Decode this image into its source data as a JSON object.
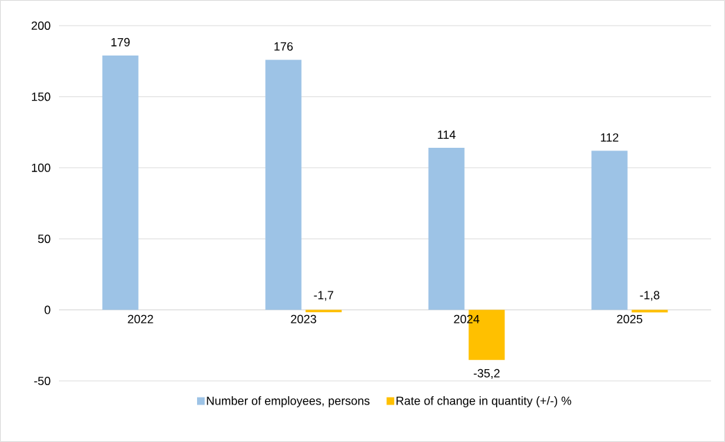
{
  "chart_data": {
    "type": "bar",
    "categories": [
      "2022",
      "2023",
      "2024",
      "2025"
    ],
    "series": [
      {
        "name": "Number of employees, persons",
        "color": "#9dc3e6",
        "values": [
          179,
          176,
          114,
          112
        ],
        "value_labels": [
          "179",
          "176",
          "114",
          "112"
        ]
      },
      {
        "name": "Rate of change in quantity (+/-) %",
        "color": "#ffc000",
        "values": [
          null,
          -1.7,
          -35.2,
          -1.8
        ],
        "value_labels": [
          null,
          "-1,7",
          "-35,2",
          "-1,8"
        ]
      }
    ],
    "ylim": [
      -50,
      200
    ],
    "yticks": [
      -50,
      0,
      50,
      100,
      150,
      200
    ],
    "grid": "y",
    "legend": "bottom"
  }
}
